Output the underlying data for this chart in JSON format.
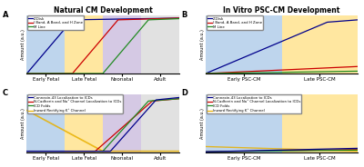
{
  "panel_titles": [
    "Natural CM Development",
    "In Vitro PSC-CM Development"
  ],
  "panel_labels": [
    "A",
    "B",
    "C",
    "D"
  ],
  "ylabel": "Amount (a.u.)",
  "bg_colors_A": [
    "#a8c8e8",
    "#ffe080",
    "#c8b8dc",
    "#d8d8d8"
  ],
  "bg_colors_B": [
    "#a8c8e8",
    "#ffe080"
  ],
  "xticklabels_A": [
    "Early Fetal",
    "Late Fetal",
    "Neonatal",
    "Adult"
  ],
  "xticklabels_B": [
    "Early PSC-CM",
    "Late PSC-CM"
  ],
  "legend_top": [
    "Z-Disk",
    "I Band, A Band, and H Zone",
    "M Line"
  ],
  "legend_bot": [
    "Connexin-43 Localization to ICDs",
    "N-Cadherin and Na⁺ Channel Localization to ICDs",
    "ICD Folds",
    "Inward Rectifying K⁺ Channel"
  ],
  "line_colors_top": [
    "#00008b",
    "#cc0000",
    "#228b22"
  ],
  "line_colors_bot": [
    "#00008b",
    "#cc0000",
    "#228b22",
    "#e8b000"
  ],
  "bg_alpha": 0.75
}
